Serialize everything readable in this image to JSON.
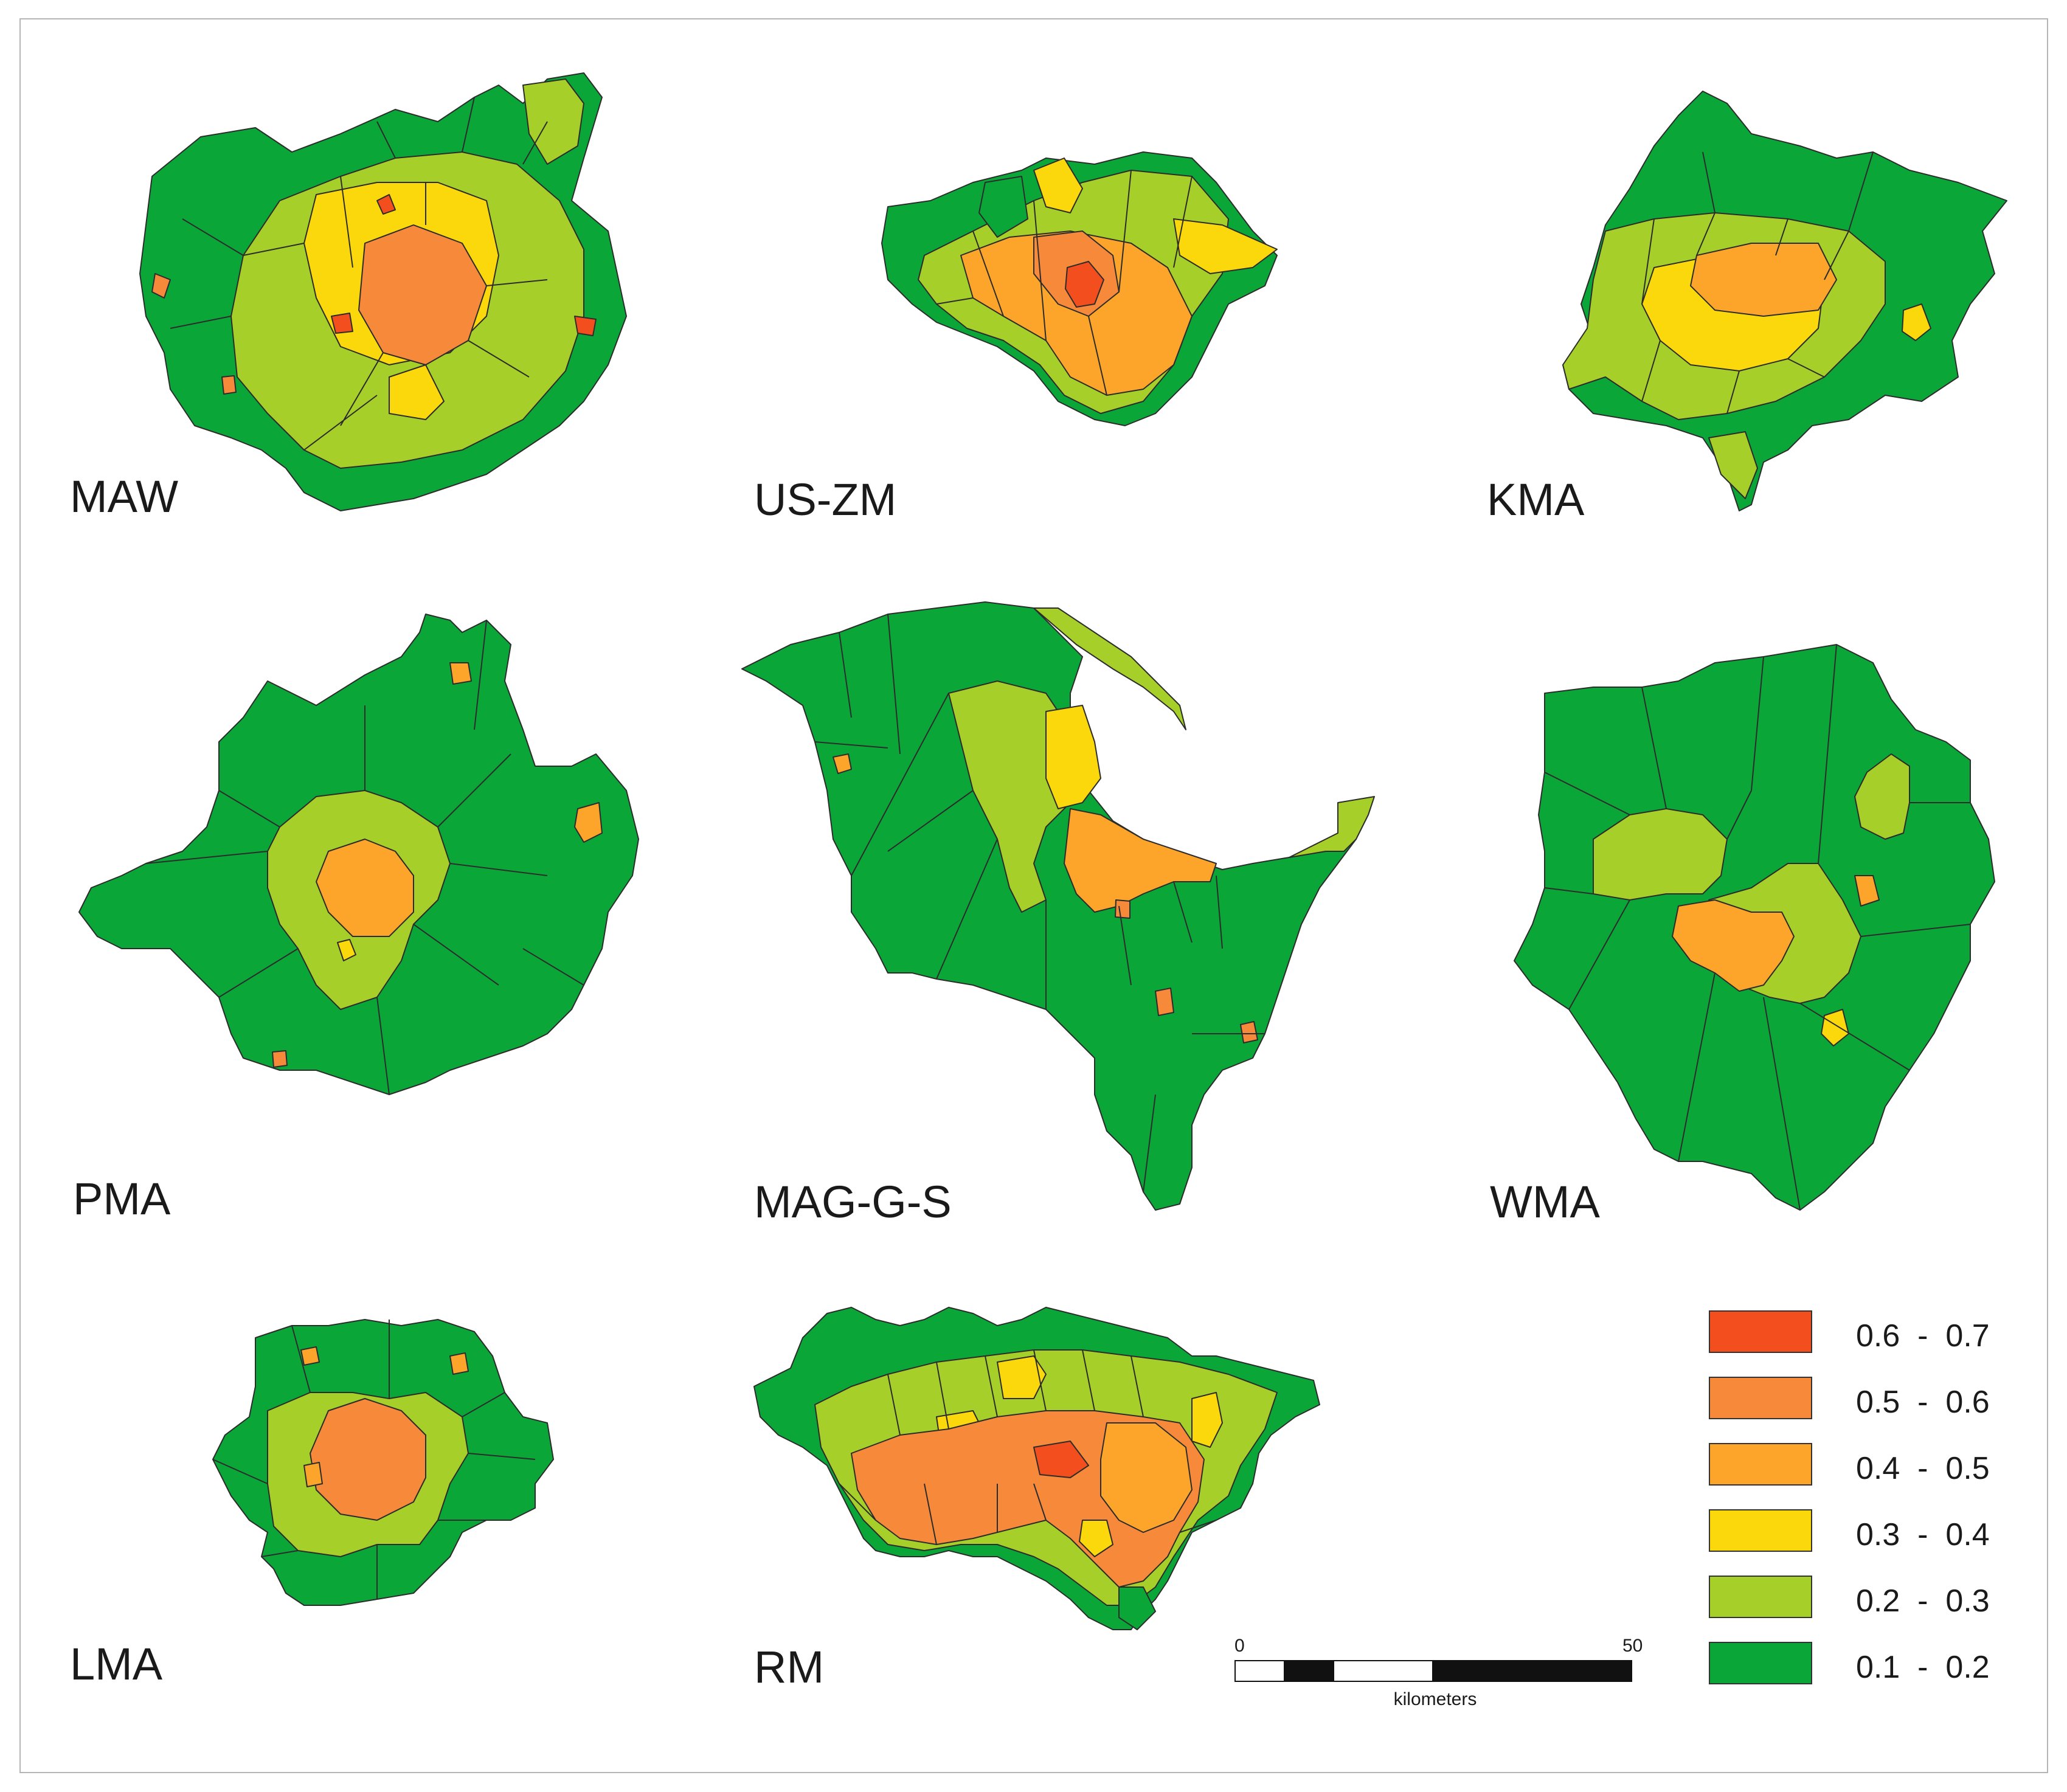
{
  "map": {
    "regions": [
      {
        "id": "maw",
        "label": "MAW"
      },
      {
        "id": "us-zm",
        "label": "US-ZM"
      },
      {
        "id": "kma",
        "label": "KMA"
      },
      {
        "id": "pma",
        "label": "PMA"
      },
      {
        "id": "mag-g-s",
        "label": "MAG-G-S"
      },
      {
        "id": "wma",
        "label": "WMA"
      },
      {
        "id": "lma",
        "label": "LMA"
      },
      {
        "id": "rm",
        "label": "RM"
      }
    ],
    "legend": [
      {
        "range": "0.6  -  0.7",
        "color": "#f24e1e"
      },
      {
        "range": "0.5  -  0.6",
        "color": "#f7893b"
      },
      {
        "range": "0.4  -  0.5",
        "color": "#fca52a"
      },
      {
        "range": "0.3  -  0.4",
        "color": "#fbd80b"
      },
      {
        "range": "0.2  -  0.3",
        "color": "#a7cf2a"
      },
      {
        "range": "0.1  -  0.2",
        "color": "#0aa638"
      }
    ],
    "scale": {
      "start": "0",
      "end": "50",
      "units": "kilometers"
    }
  }
}
